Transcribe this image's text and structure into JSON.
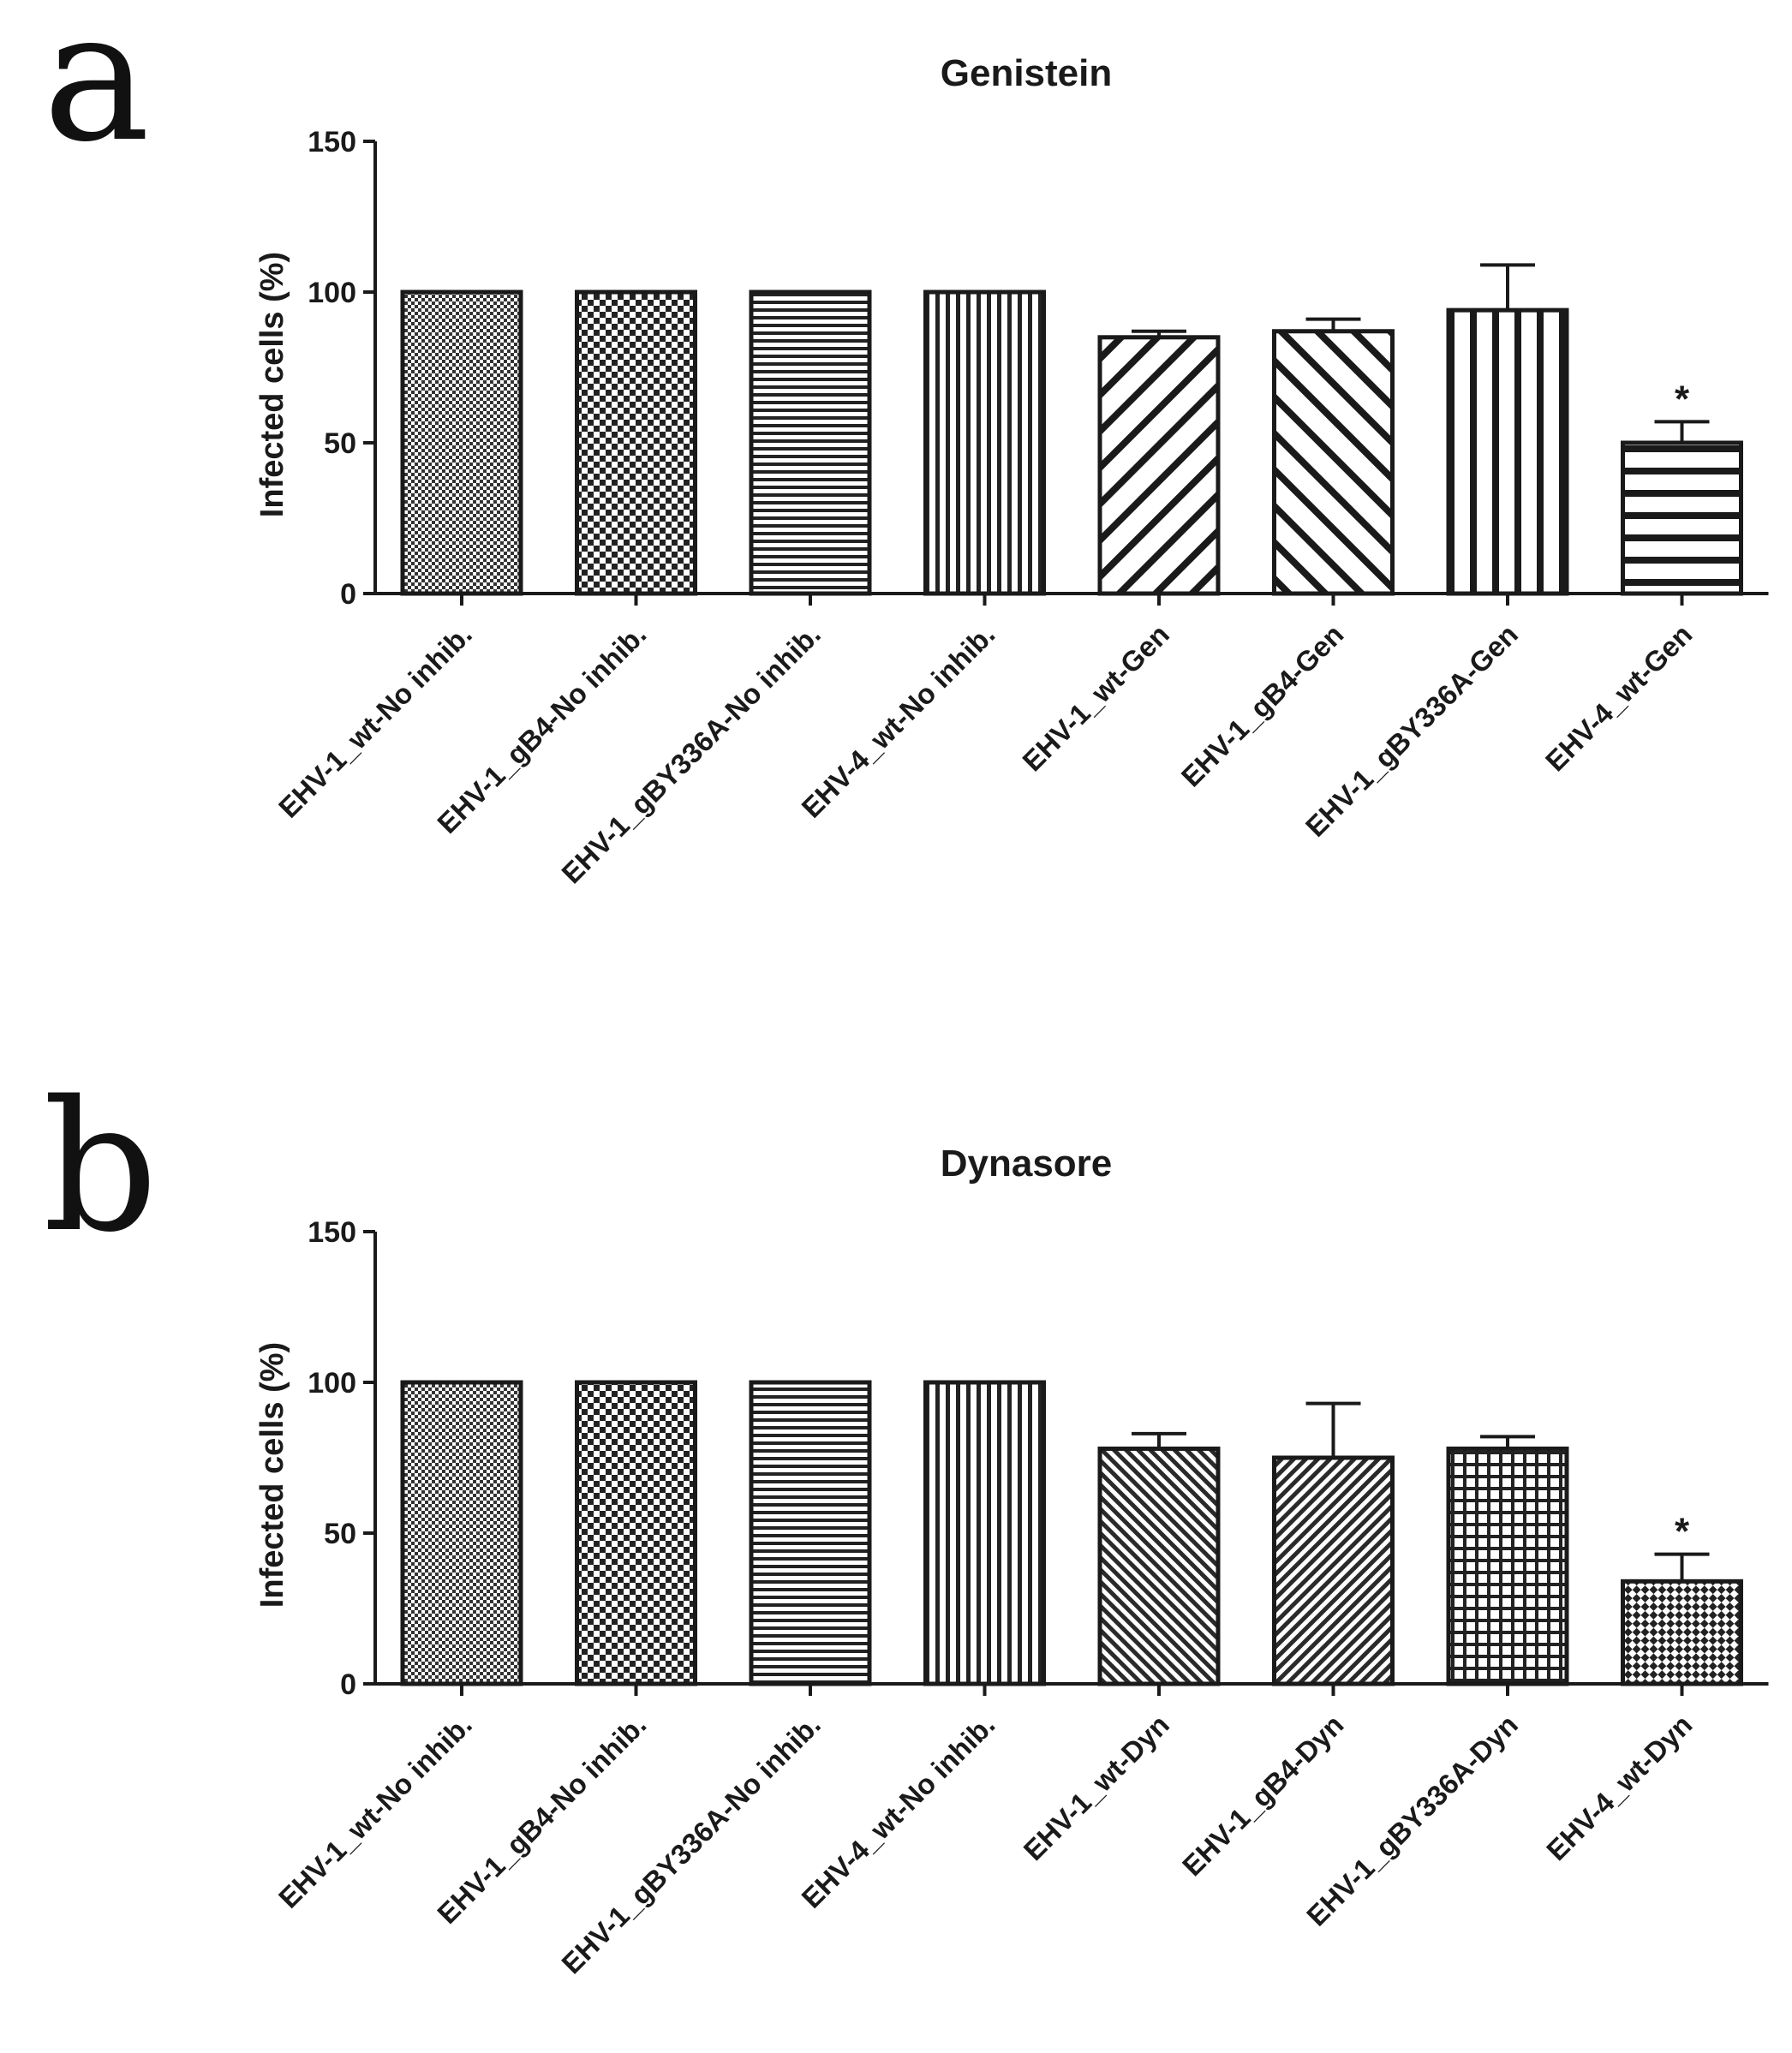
{
  "chart_data": [
    {
      "panel": "a",
      "type": "bar",
      "title": "Genistein",
      "xlabel": "",
      "ylabel": "Infected cells (%)",
      "ylim": [
        0,
        150
      ],
      "yticks": [
        0,
        50,
        100,
        150
      ],
      "grid": false,
      "categories": [
        "EHV-1_wt-No inhib.",
        "EHV-1_gB4-No inhib.",
        "EHV-1_gBY336A-No inhib.",
        "EHV-4_wt-No inhib.",
        "EHV-1_wt-Gen",
        "EHV-1_gB4-Gen",
        "EHV-1_gBY336A-Gen",
        "EHV-4_wt-Gen"
      ],
      "values": [
        100,
        100,
        100,
        100,
        85,
        87,
        94,
        50
      ],
      "errors": [
        0,
        0,
        0,
        0,
        2,
        4,
        15,
        7
      ],
      "patterns": [
        "fine-check",
        "check",
        "hlines-dense",
        "vlines-dense",
        "diag-back-wide",
        "diag-fwd-wide",
        "vlines-wide",
        "hlines-wide"
      ],
      "annotations": [
        {
          "category_index": 7,
          "text": "*"
        }
      ]
    },
    {
      "panel": "b",
      "type": "bar",
      "title": "Dynasore",
      "xlabel": "",
      "ylabel": "Infected cells (%)",
      "ylim": [
        0,
        150
      ],
      "yticks": [
        0,
        50,
        100,
        150
      ],
      "grid": false,
      "categories": [
        "EHV-1_wt-No inhib.",
        "EHV-1_gB4-No inhib.",
        "EHV-1_gBY336A-No inhib.",
        "EHV-4_wt-No inhib.",
        "EHV-1_wt-Dyn",
        "EHV-1_gB4-Dyn",
        "EHV-1_gBY336A-Dyn",
        "EHV-4_wt-Dyn"
      ],
      "values": [
        100,
        100,
        100,
        100,
        78,
        75,
        78,
        34
      ],
      "errors": [
        0,
        0,
        0,
        0,
        5,
        18,
        4,
        9
      ],
      "patterns": [
        "fine-check",
        "check",
        "hlines-dense",
        "vlines-dense",
        "diag-fwd-fine",
        "diag-back-fine",
        "grid",
        "diamond-check"
      ],
      "annotations": [
        {
          "category_index": 7,
          "text": "*"
        }
      ]
    }
  ],
  "colors": {
    "ink": "#1a1a1a",
    "background": "#ffffff"
  }
}
